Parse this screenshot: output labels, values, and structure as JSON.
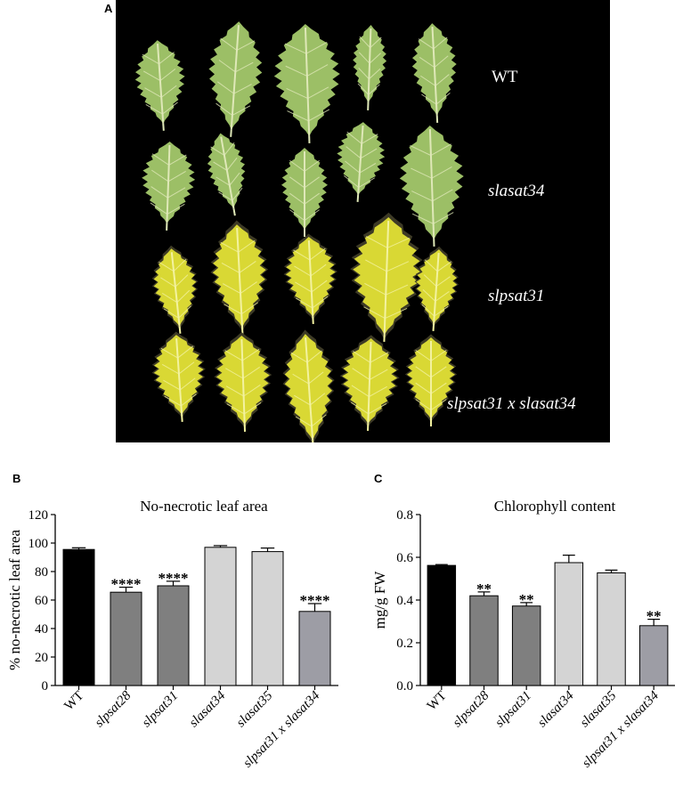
{
  "panels": {
    "a_letter": "A",
    "b_letter": "B",
    "c_letter": "C"
  },
  "photo": {
    "rows": [
      {
        "label": "WT",
        "italic": false,
        "leaf_color": "green",
        "leaves": 5
      },
      {
        "label": "slasat34",
        "italic": true,
        "leaf_color": "green",
        "leaves": 5
      },
      {
        "label": "slpsat31",
        "italic": true,
        "leaf_color": "yellow",
        "leaves": 5
      },
      {
        "label": "slpsat31 x slasat34",
        "italic": true,
        "leaf_color": "yellow",
        "leaves": 5
      }
    ],
    "colors": {
      "background": "#000000",
      "healthy_leaf": "#9cbf66",
      "healthy_vein": "#dfe8b8",
      "chlorotic_leaf": "#d9d834",
      "chlorotic_vein": "#f3f2a0",
      "necrotic_edge": "#3d3a26"
    }
  },
  "chart_data": [
    {
      "type": "bar",
      "title": "No-necrotic leaf area",
      "ylabel": "% no-necrotic leaf area",
      "xlabel": "",
      "ylim": [
        0,
        120
      ],
      "yticks": [
        0,
        20,
        40,
        60,
        80,
        100,
        120
      ],
      "categories": [
        "WT",
        "slpsat28",
        "slpsat31",
        "slasat34",
        "slasat35",
        "slpsat31 x slasat34"
      ],
      "values": [
        95.5,
        65.5,
        70,
        97,
        94,
        52
      ],
      "errors": [
        1.2,
        3.5,
        3.2,
        1.2,
        2.5,
        5.5
      ],
      "significance": [
        "",
        "****",
        "****",
        "",
        "",
        "****"
      ],
      "bar_colors": [
        "#000000",
        "#7f7f7f",
        "#7f7f7f",
        "#d4d4d4",
        "#d4d4d4",
        "#9d9da5"
      ],
      "grid": false
    },
    {
      "type": "bar",
      "title": "Chlorophyll content",
      "ylabel": "mg/g FW",
      "xlabel": "",
      "ylim": [
        0,
        0.8
      ],
      "yticks": [
        "0.0",
        "0.2",
        "0.4",
        "0.6",
        "0.8"
      ],
      "categories": [
        "WT",
        "slpsat28",
        "slpsat31",
        "slasat34",
        "slasat35",
        "slpsat31 x slasat34"
      ],
      "values": [
        0.562,
        0.42,
        0.372,
        0.575,
        0.527,
        0.28
      ],
      "errors": [
        0.004,
        0.018,
        0.016,
        0.035,
        0.013,
        0.03
      ],
      "significance": [
        "",
        "**",
        "**",
        "",
        "",
        "**"
      ],
      "bar_colors": [
        "#000000",
        "#7f7f7f",
        "#7f7f7f",
        "#d4d4d4",
        "#d4d4d4",
        "#9d9da5"
      ],
      "grid": false
    }
  ]
}
